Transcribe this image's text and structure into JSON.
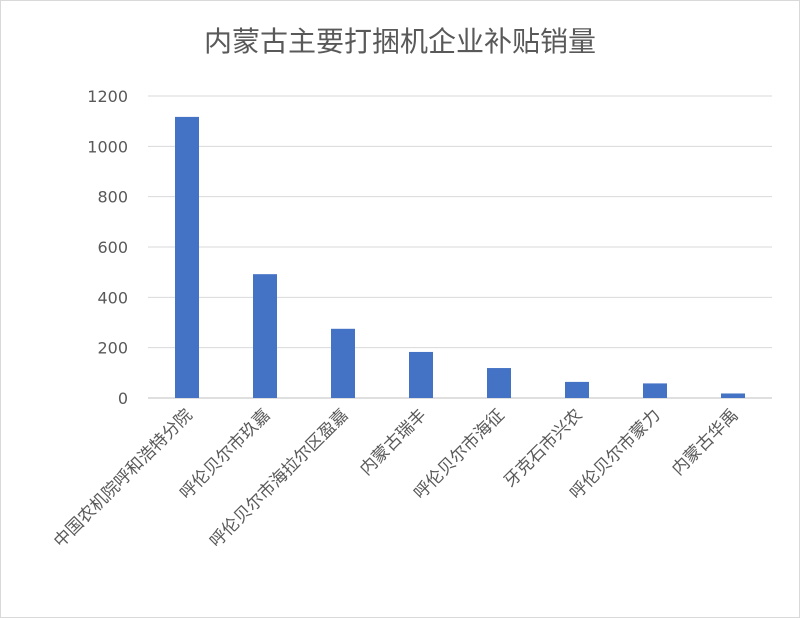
{
  "chart_data": {
    "type": "bar",
    "title": "内蒙古主要打捆机企业补贴销量",
    "xlabel": "",
    "ylabel": "",
    "ylim": [
      0,
      1200
    ],
    "yticks": [
      0,
      200,
      400,
      600,
      800,
      1000,
      1200
    ],
    "grid": true,
    "legend": "none",
    "categories": [
      "中国农机院呼和浩特分院",
      "呼伦贝尔市玖嘉",
      "呼伦贝尔市海拉尔区盈嘉",
      "内蒙古瑞丰",
      "呼伦贝尔市海征",
      "牙克石市兴农",
      "呼伦贝尔市蒙力",
      "内蒙古华禹"
    ],
    "values": [
      1117,
      492,
      275,
      183,
      119,
      64,
      58,
      18
    ],
    "colors": {
      "bar": "#4472c4",
      "grid": "#d9d9d9",
      "text": "#595959"
    }
  }
}
